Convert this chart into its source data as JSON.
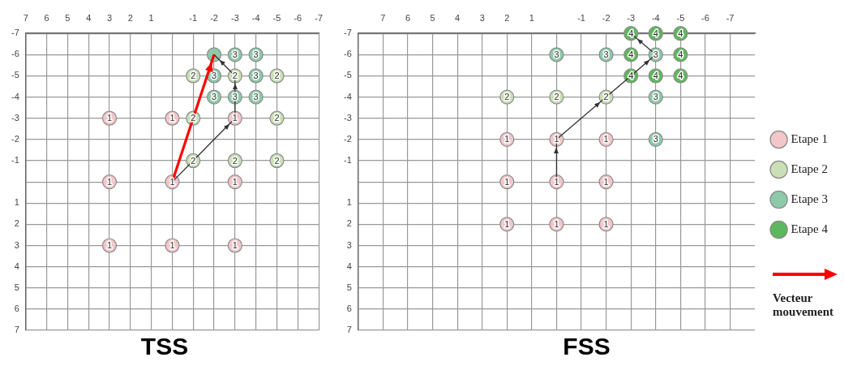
{
  "chart_data": [
    {
      "type": "scatter",
      "title": "TSS",
      "xlim": [
        7,
        -7
      ],
      "ylim": [
        7,
        -7
      ],
      "xticks": [
        7,
        6,
        5,
        4,
        3,
        2,
        1,
        {
          "value": 0,
          "label": null
        },
        -1,
        -2,
        -3,
        -4,
        -5,
        -6,
        -7
      ],
      "yticks": [
        -7,
        -6,
        -5,
        -4,
        -3,
        -2,
        -1,
        {
          "value": 0,
          "label": null
        },
        1,
        2,
        3,
        4,
        5,
        6,
        7
      ],
      "grid": true,
      "legend": false,
      "marker": "circle",
      "series": [
        {
          "color": "#f2c6ca",
          "x": [
            3,
            0,
            -3,
            3,
            0,
            -3,
            3,
            0,
            -3
          ],
          "values": [
            -3,
            -3,
            -3,
            0,
            0,
            0,
            3,
            3,
            3
          ]
        },
        {
          "color": "#c9dfb5",
          "x": [
            -1,
            -3,
            -5,
            -1,
            -5,
            -1,
            -3,
            -5
          ],
          "values": [
            -5,
            -5,
            -5,
            -3,
            -3,
            -1,
            -1,
            -1
          ]
        },
        {
          "color": "#8ec9aa",
          "x": [
            -2,
            -3,
            -4,
            -2,
            -4,
            -2,
            -3,
            -4
          ],
          "values": [
            -6,
            -6,
            -6,
            -5,
            -5,
            -4,
            -4,
            -4
          ]
        },
        {
          "type": "line",
          "color": "#333333",
          "marker": "none",
          "x": [
            0,
            -3,
            -3,
            -2
          ],
          "values": [
            0,
            -3,
            -5,
            -6
          ]
        },
        {
          "type": "line",
          "color": "#ff0000",
          "marker": "none",
          "x": [
            0,
            -2
          ],
          "values": [
            0,
            -6
          ]
        }
      ],
      "annotations": [
        "Vecteur mouvement",
        {
          "text": "1",
          "x": 3,
          "y": -3
        },
        {
          "text": "1",
          "x": 0,
          "y": -3
        },
        {
          "text": "1",
          "x": -3,
          "y": -3
        },
        {
          "text": "1",
          "x": 3,
          "y": 0
        },
        {
          "text": "1",
          "x": 0,
          "y": 0
        },
        {
          "text": "1",
          "x": -3,
          "y": 0
        },
        {
          "text": "1",
          "x": 3,
          "y": 3
        },
        {
          "text": "1",
          "x": 0,
          "y": 3
        },
        {
          "text": "1",
          "x": -3,
          "y": 3
        },
        {
          "text": "2",
          "x": -1,
          "y": -5
        },
        {
          "text": "2",
          "x": -3,
          "y": -5
        },
        {
          "text": "2",
          "x": -5,
          "y": -5
        },
        {
          "text": "2",
          "x": -1,
          "y": -3
        },
        {
          "text": "2",
          "x": -5,
          "y": -3
        },
        {
          "text": "2",
          "x": -1,
          "y": -1
        },
        {
          "text": "2",
          "x": -3,
          "y": -1
        },
        {
          "text": "2",
          "x": -5,
          "y": -1
        },
        {
          "text": "3",
          "x": -3,
          "y": -6
        },
        {
          "text": "3",
          "x": -4,
          "y": -6
        },
        {
          "text": "3",
          "x": -2,
          "y": -5
        },
        {
          "text": "3",
          "x": -4,
          "y": -5
        },
        {
          "text": "3",
          "x": -2,
          "y": -4
        },
        {
          "text": "3",
          "x": -3,
          "y": -4
        },
        {
          "text": "3",
          "x": -4,
          "y": -4
        }
      ]
    },
    {
      "type": "scatter",
      "title": "FSS",
      "xlim": [
        8,
        -8
      ],
      "ylim": [
        7,
        -7
      ],
      "xticks": [
        7,
        6,
        5,
        4,
        3,
        2,
        1,
        {
          "value": 0,
          "label": null
        },
        -1,
        -2,
        -3,
        -4,
        -5,
        -6,
        -7
      ],
      "yticks": [
        -7,
        -6,
        -5,
        -4,
        -3,
        -2,
        -1,
        {
          "value": 0,
          "label": null
        },
        1,
        2,
        3,
        4,
        5,
        6,
        7
      ],
      "grid": true,
      "legend": "right",
      "marker": "circle",
      "series": [
        {
          "name": "Etape 1",
          "color": "#f2c6ca",
          "x": [
            2,
            0,
            -2,
            2,
            0,
            -2,
            2,
            0,
            -2
          ],
          "values": [
            -2,
            -2,
            -2,
            0,
            0,
            0,
            2,
            2,
            2
          ]
        },
        {
          "name": "Etape 2",
          "color": "#c9dfb5",
          "x": [
            2,
            0,
            -2
          ],
          "values": [
            -4,
            -4,
            -4
          ]
        },
        {
          "name": "Etape 3",
          "color": "#8ec9aa",
          "x": [
            0,
            -2,
            -4,
            -4,
            -4
          ],
          "values": [
            -6,
            -6,
            -6,
            -4,
            -2
          ]
        },
        {
          "name": "Etape 4",
          "color": "#5cb85c",
          "x": [
            -3,
            -4,
            -5,
            -3,
            -5,
            -3,
            -4,
            -5
          ],
          "values": [
            -7,
            -7,
            -7,
            -6,
            -6,
            -5,
            -5,
            -5
          ]
        },
        {
          "type": "line",
          "color": "#333333",
          "marker": "none",
          "x": [
            0,
            0,
            -2,
            -4,
            -3
          ],
          "values": [
            0,
            -2,
            -4,
            -6,
            -7
          ]
        }
      ],
      "annotations": [
        {
          "text": "1",
          "x": 2,
          "y": -2
        },
        {
          "text": "1",
          "x": 0,
          "y": -2
        },
        {
          "text": "1",
          "x": -2,
          "y": -2
        },
        {
          "text": "1",
          "x": 2,
          "y": 0
        },
        {
          "text": "1",
          "x": 0,
          "y": 0
        },
        {
          "text": "1",
          "x": -2,
          "y": 0
        },
        {
          "text": "1",
          "x": 2,
          "y": 2
        },
        {
          "text": "1",
          "x": 0,
          "y": 2
        },
        {
          "text": "1",
          "x": -2,
          "y": 2
        },
        {
          "text": "2",
          "x": 2,
          "y": -4
        },
        {
          "text": "2",
          "x": 0,
          "y": -4
        },
        {
          "text": "2",
          "x": -2,
          "y": -4
        },
        {
          "text": "3",
          "x": 0,
          "y": -6
        },
        {
          "text": "3",
          "x": -2,
          "y": -6
        },
        {
          "text": "3",
          "x": -4,
          "y": -6
        },
        {
          "text": "3",
          "x": -4,
          "y": -4
        },
        {
          "text": "3",
          "x": -4,
          "y": -2
        },
        {
          "text": "4",
          "x": -3,
          "y": -7
        },
        {
          "text": "4",
          "x": -4,
          "y": -7
        },
        {
          "text": "4",
          "x": -5,
          "y": -7
        },
        {
          "text": "4",
          "x": -3,
          "y": -6
        },
        {
          "text": "4",
          "x": -5,
          "y": -6
        },
        {
          "text": "4",
          "x": -3,
          "y": -5
        },
        {
          "text": "4",
          "x": -4,
          "y": -5
        },
        {
          "text": "4",
          "x": -5,
          "y": -5
        }
      ]
    }
  ]
}
